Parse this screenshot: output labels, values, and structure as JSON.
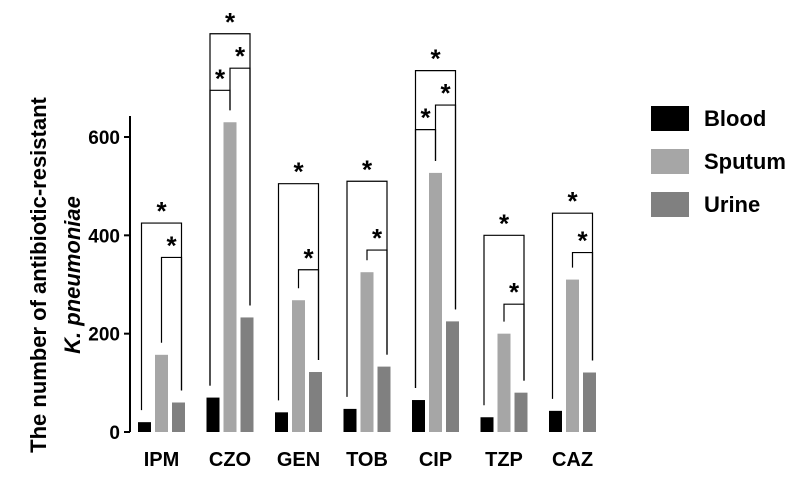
{
  "chart_data": {
    "type": "bar",
    "ylabel_line1": "The number of antibiotic-resistant",
    "ylabel_line2": "K. pneumoniae",
    "ylim": [
      0,
      650
    ],
    "yticks": [
      0,
      200,
      400,
      600
    ],
    "grid": false,
    "legend_position": "right",
    "categories": [
      "IPM",
      "CZO",
      "GEN",
      "TOB",
      "CIP",
      "TZP",
      "CAZ"
    ],
    "series": [
      {
        "name": "Blood",
        "color": "#000000",
        "values": [
          20,
          70,
          40,
          47,
          65,
          30,
          43
        ]
      },
      {
        "name": "Sputum",
        "color": "#a6a6a6",
        "values": [
          157,
          630,
          268,
          325,
          527,
          200,
          310
        ]
      },
      {
        "name": "Urine",
        "color": "#808080",
        "values": [
          60,
          233,
          122,
          133,
          225,
          80,
          121
        ]
      }
    ],
    "significance": [
      {
        "category": "IPM",
        "pairs": [
          {
            "between": [
              "Blood",
              "Urine"
            ],
            "bracket_level": 425,
            "mark": "*"
          },
          {
            "between": [
              "Sputum",
              "Urine"
            ],
            "bracket_level": 355,
            "mark": "*"
          }
        ]
      },
      {
        "category": "CZO",
        "pairs": [
          {
            "between": [
              "Blood",
              "Sputum"
            ],
            "bracket_level": 695,
            "mark": "*"
          },
          {
            "between": [
              "Sputum",
              "Urine"
            ],
            "bracket_level": 740,
            "mark": "*"
          },
          {
            "between": [
              "Blood",
              "Urine"
            ],
            "bracket_level": 810,
            "mark": "*"
          }
        ]
      },
      {
        "category": "GEN",
        "pairs": [
          {
            "between": [
              "Blood",
              "Urine"
            ],
            "bracket_level": 505,
            "mark": "*"
          },
          {
            "between": [
              "Sputum",
              "Urine"
            ],
            "bracket_level": 330,
            "mark": "*"
          }
        ]
      },
      {
        "category": "TOB",
        "pairs": [
          {
            "between": [
              "Blood",
              "Urine"
            ],
            "bracket_level": 510,
            "mark": "*"
          },
          {
            "between": [
              "Sputum",
              "Urine"
            ],
            "bracket_level": 370,
            "mark": "*"
          }
        ]
      },
      {
        "category": "CIP",
        "pairs": [
          {
            "between": [
              "Blood",
              "Sputum"
            ],
            "bracket_level": 615,
            "mark": "*"
          },
          {
            "between": [
              "Sputum",
              "Urine"
            ],
            "bracket_level": 665,
            "mark": "*"
          },
          {
            "between": [
              "Blood",
              "Urine"
            ],
            "bracket_level": 735,
            "mark": "*"
          }
        ]
      },
      {
        "category": "TZP",
        "pairs": [
          {
            "between": [
              "Blood",
              "Urine"
            ],
            "bracket_level": 400,
            "mark": "*"
          },
          {
            "between": [
              "Sputum",
              "Urine"
            ],
            "bracket_level": 260,
            "mark": "*"
          }
        ]
      },
      {
        "category": "CAZ",
        "pairs": [
          {
            "between": [
              "Blood",
              "Urine"
            ],
            "bracket_level": 445,
            "mark": "*"
          },
          {
            "between": [
              "Sputum",
              "Urine"
            ],
            "bracket_level": 365,
            "mark": "*"
          }
        ]
      }
    ]
  }
}
